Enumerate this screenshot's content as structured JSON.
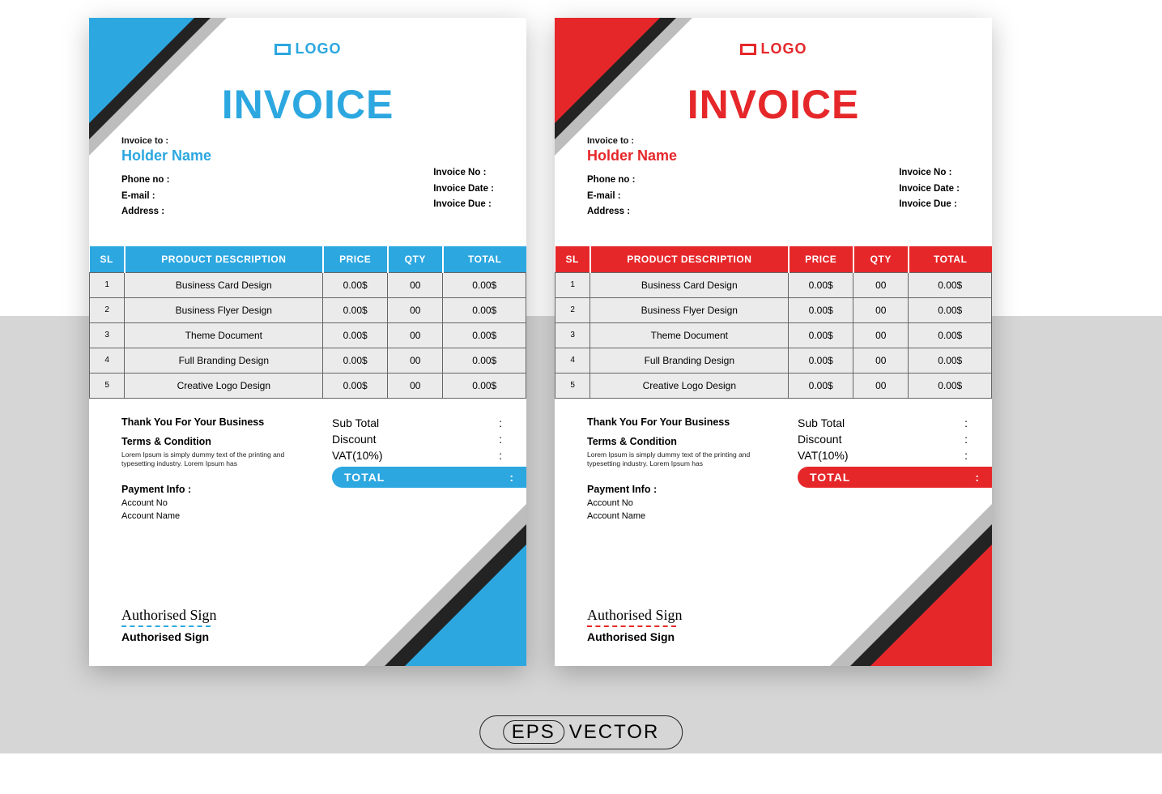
{
  "colors": {
    "blue": "#2ca7e0",
    "red": "#e6272a",
    "gray": "#d6d6d6"
  },
  "logo_text": "LOGO",
  "title": "INVOICE",
  "invoice_to_label": "Invoice to :",
  "holder_name": "Holder Name",
  "left_fields": [
    "Phone no :",
    "E-mail    :",
    "Address :"
  ],
  "right_fields": [
    "Invoice No    :",
    "Invoice Date :",
    "Invoice Due  :"
  ],
  "table": {
    "headers": [
      "SL",
      "PRODUCT DESCRIPTION",
      "PRICE",
      "QTY",
      "TOTAL"
    ],
    "rows": [
      {
        "sl": "1",
        "desc": "Business Card Design",
        "price": "0.00$",
        "qty": "00",
        "total": "0.00$"
      },
      {
        "sl": "2",
        "desc": "Business Flyer Design",
        "price": "0.00$",
        "qty": "00",
        "total": "0.00$"
      },
      {
        "sl": "3",
        "desc": "Theme Document",
        "price": "0.00$",
        "qty": "00",
        "total": "0.00$"
      },
      {
        "sl": "4",
        "desc": "Full Branding Design",
        "price": "0.00$",
        "qty": "00",
        "total": "0.00$"
      },
      {
        "sl": "5",
        "desc": "Creative Logo Design",
        "price": "0.00$",
        "qty": "00",
        "total": "0.00$"
      }
    ]
  },
  "thanks": "Thank You For Your Business",
  "terms_heading": "Terms & Condition",
  "terms_body": "Lorem Ipsum is simply dummy text of the printing and typesetting industry. Lorem Ipsum has",
  "payment_heading": "Payment Info :",
  "payment_lines": [
    "Account No",
    "Account Name"
  ],
  "summary": [
    {
      "label": "Sub Total",
      "sep": ":"
    },
    {
      "label": "Discount",
      "sep": ":"
    },
    {
      "label": "VAT(10%)",
      "sep": ":"
    }
  ],
  "total_label": "TOTAL",
  "total_sep": ":",
  "sign_script": "Authorised Sign",
  "sign_label": "Authorised Sign",
  "eps_badge": {
    "left": "EPS",
    "right": "VECTOR"
  },
  "variants": [
    {
      "accent_key": "blue"
    },
    {
      "accent_key": "red"
    }
  ]
}
